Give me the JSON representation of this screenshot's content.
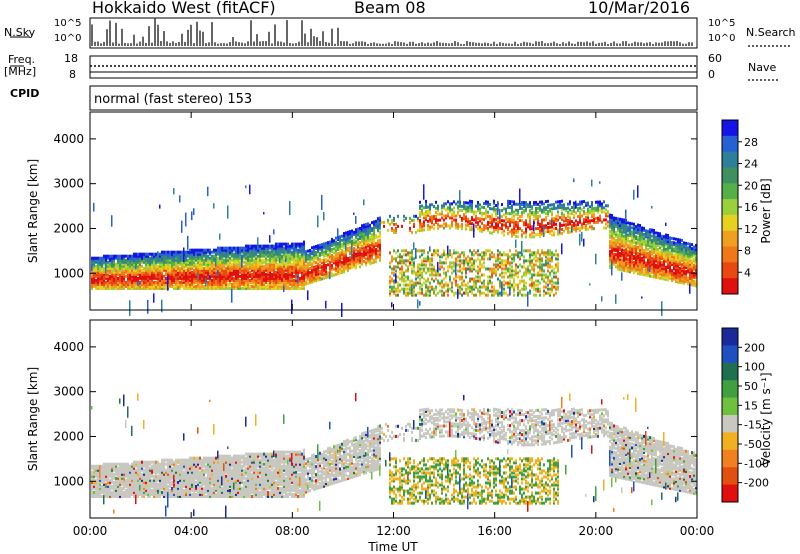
{
  "header": {
    "station": "Hokkaido West (fitACF)",
    "beam": "Beam 08",
    "date": "10/Mar/2016"
  },
  "summary": {
    "nsky_label": "N.Sky",
    "nsearch_label": "N.Search",
    "nsky_scale_top": "10^5",
    "nsky_scale_bottom": "10^0",
    "nsearch_scale_top": "10^5",
    "nsearch_scale_bottom": "10^0",
    "freq_label": "Freq.",
    "freq_unit": "[MHz]",
    "freq_top": "18",
    "freq_bottom": "8",
    "nave_label": "Nave",
    "nave_top": "60",
    "nave_bottom": "0",
    "cpid_label": "CPID",
    "cpid_text": "normal (fast stereo) 153"
  },
  "chart_data": [
    {
      "type": "heatmap",
      "name": "power",
      "ylabel": "Slant Range [km]",
      "xlabel": "",
      "x_ticks": [
        "00:00",
        "04:00",
        "08:00",
        "12:00",
        "16:00",
        "20:00",
        "00:00"
      ],
      "y_ticks": [
        1000,
        2000,
        3000,
        4000
      ],
      "ylim": [
        180,
        4600
      ],
      "xlim_hours": [
        0,
        24
      ],
      "colorbar": {
        "label": "Power [dB]",
        "ticks": [
          4,
          8,
          12,
          16,
          20,
          24,
          28
        ],
        "colors": [
          "#1414e6",
          "#2860d2",
          "#2e7f9a",
          "#3f8f60",
          "#55b04a",
          "#9ad03a",
          "#e6d020",
          "#f0a020",
          "#f07818",
          "#e84812",
          "#e01010"
        ]
      }
    },
    {
      "type": "heatmap",
      "name": "velocity",
      "ylabel": "Slant Range [km]",
      "xlabel": "Time UT",
      "x_ticks": [
        "00:00",
        "04:00",
        "08:00",
        "12:00",
        "16:00",
        "20:00",
        "00:00"
      ],
      "y_ticks": [
        1000,
        2000,
        3000,
        4000
      ],
      "ylim": [
        180,
        4600
      ],
      "xlim_hours": [
        0,
        24
      ],
      "colorbar": {
        "label": "Velocity [m s⁻¹]",
        "ticks": [
          200,
          100,
          50,
          15,
          -15,
          -50,
          -100,
          -200
        ],
        "colors": [
          "#1a2a9a",
          "#2050c0",
          "#207050",
          "#40a040",
          "#70c040",
          "#c8c8c0",
          "#f0b020",
          "#f08020",
          "#e05010",
          "#e01010"
        ]
      }
    }
  ]
}
